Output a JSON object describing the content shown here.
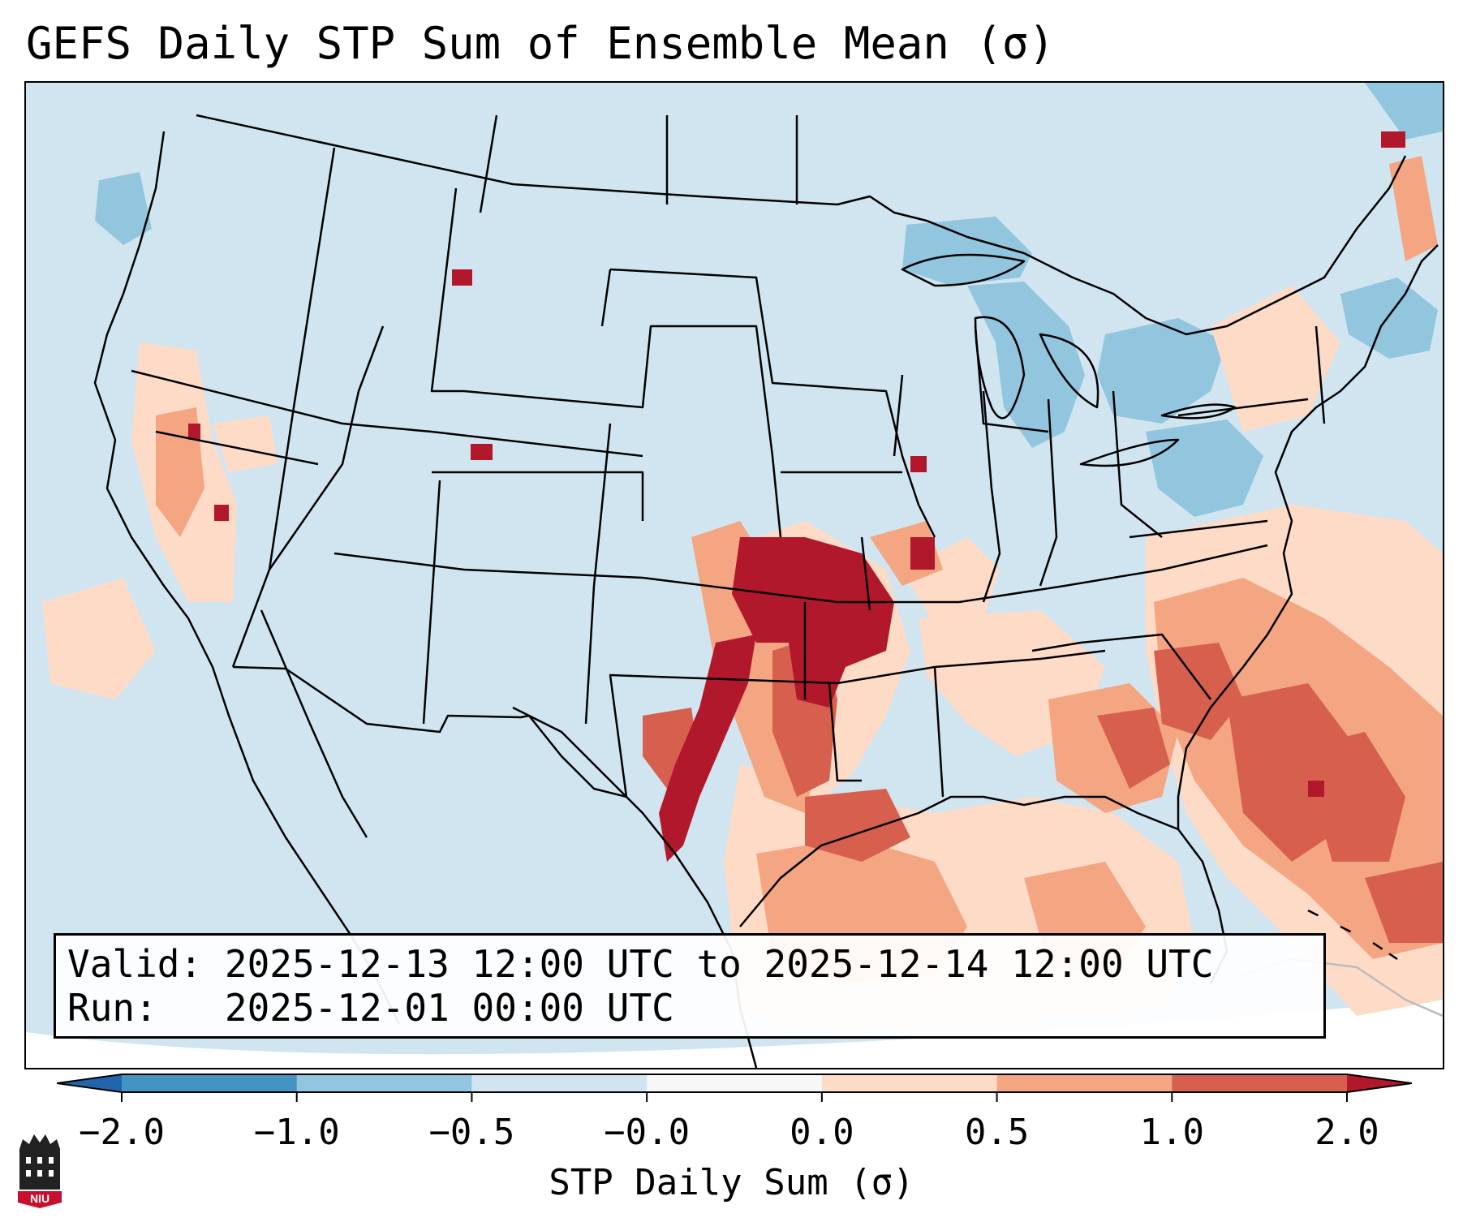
{
  "title": "GEFS Daily STP Sum of Ensemble Mean (σ)",
  "info": {
    "valid_label": "Valid:",
    "valid_value": "2025-12-13 12:00 UTC to 2025-12-14 12:00 UTC",
    "run_label": "Run:",
    "run_value": "2025-12-01 00:00 UTC"
  },
  "colorbar": {
    "label": "STP Daily Sum (σ)",
    "ticks": [
      "−2.0",
      "−1.0",
      "−0.5",
      "−0.0",
      "0.0",
      "0.5",
      "1.0",
      "2.0"
    ],
    "bins": [
      {
        "range": "< -2.0",
        "color": "#2166ac"
      },
      {
        "range": "-2.0 to -1.0",
        "color": "#4393c3"
      },
      {
        "range": "-1.0 to -0.5",
        "color": "#92c5de"
      },
      {
        "range": "-0.5 to -0.0",
        "color": "#d1e5f0"
      },
      {
        "range": "-0.0 to 0.0",
        "color": "#f7f7f7"
      },
      {
        "range": "0.0 to 0.5",
        "color": "#fddbc7"
      },
      {
        "range": "0.5 to 1.0",
        "color": "#f4a582"
      },
      {
        "range": "1.0 to 2.0",
        "color": "#d6604d"
      },
      {
        "range": "> 2.0",
        "color": "#b2182b"
      }
    ]
  },
  "map": {
    "domain": "CONUS",
    "field": "STP daily sum anomaly",
    "background_color": "#d1e5f0",
    "features": [
      {
        "region": "Southern Plains (OK/KS/TX)",
        "level": "> 2.0"
      },
      {
        "region": "Southeast US / Gulf Coast",
        "level": "0.5 to 2.0"
      },
      {
        "region": "Western Atlantic",
        "level": "0.5 to 2.0"
      },
      {
        "region": "Great Lakes / Northeast",
        "level": "-1.0 to -0.5"
      },
      {
        "region": "California",
        "level": "0.0 to 2.0"
      }
    ]
  },
  "logo": {
    "text": "NIU"
  }
}
